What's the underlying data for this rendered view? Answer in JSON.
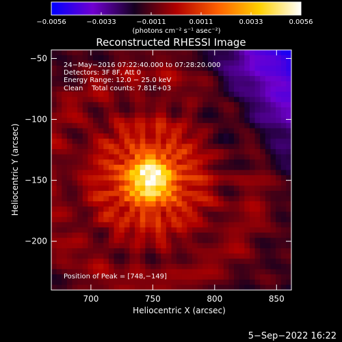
{
  "chart_data": {
    "type": "heatmap",
    "title": "Reconstructed RHESSI Image",
    "xlabel": "Heliocentric X (arcsec)",
    "ylabel": "Heliocentric Y (arcsec)",
    "xlim": [
      668,
      862
    ],
    "ylim": [
      -240,
      -43
    ],
    "x_ticks": [
      700,
      750,
      800,
      850
    ],
    "y_ticks": [
      -50,
      -100,
      -150,
      -200
    ],
    "x_tick_labels": [
      "700",
      "750",
      "800",
      "850"
    ],
    "y_tick_labels": [
      "−50",
      "−100",
      "−150",
      "−200"
    ],
    "colorbar": {
      "min": -0.0056,
      "max": 0.0056,
      "ticks": [
        "−0.0056",
        "−0.0033",
        "−0.0011",
        "0.0011",
        "0.0033",
        "0.0056"
      ],
      "unit_label": "(photons cm⁻² s⁻¹ asec⁻²)",
      "colors": [
        "#0000ff",
        "#7000d0",
        "#150020",
        "#b00000",
        "#ff6000",
        "#ffd000",
        "#ffffff"
      ]
    },
    "peak": {
      "x": 748,
      "y": -149
    },
    "annotations": [
      "24−May−2016 07:22:40.000 to 07:28:20.000",
      "Detectors: 3F 8F, Att 0",
      "Energy Range: 12.0 − 25.0 keV",
      "Clean    Total counts: 7.81E+03"
    ],
    "peak_label": "Position of Peak = [748,−149]"
  },
  "timestamp": "5−Sep−2022 16:22"
}
